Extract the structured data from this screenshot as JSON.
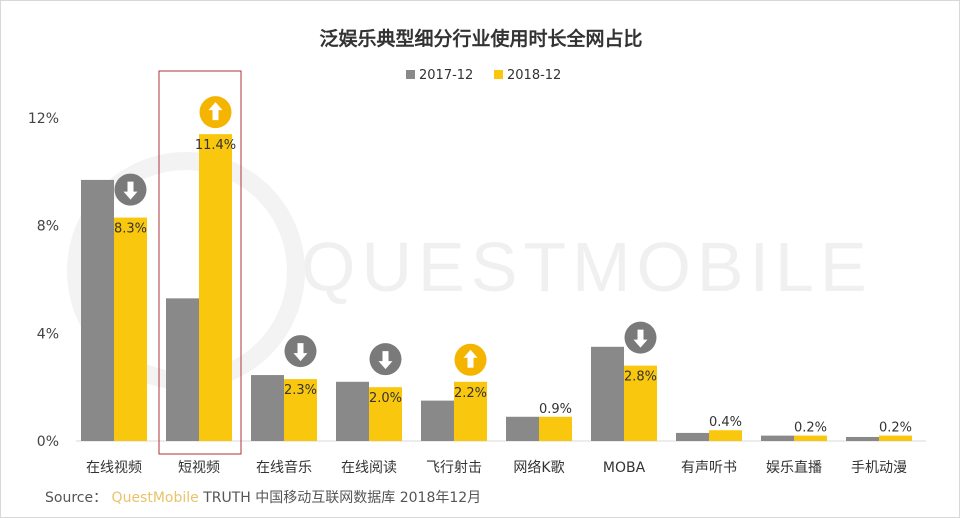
{
  "chart_data": {
    "type": "bar",
    "title": "泛娱乐典型细分行业使用时长全网占比",
    "categories": [
      "在线视频",
      "短视频",
      "在线音乐",
      "在线阅读",
      "飞行射击",
      "网络K歌",
      "MOBA",
      "有声听书",
      "娱乐直播",
      "手机动漫"
    ],
    "series": [
      {
        "name": "2017-12",
        "color": "#898989",
        "values": [
          9.7,
          5.3,
          2.45,
          2.2,
          1.5,
          0.9,
          3.5,
          0.3,
          0.2,
          0.15
        ]
      },
      {
        "name": "2018-12",
        "color": "#f9c80e",
        "values": [
          8.3,
          11.4,
          2.3,
          2.0,
          2.2,
          0.9,
          2.8,
          0.4,
          0.2,
          0.2
        ],
        "labels": [
          "8.3%",
          "11.4%",
          "2.3%",
          "2.0%",
          "2.2%",
          "0.9%",
          "2.8%",
          "0.4%",
          "0.2%",
          "0.2%"
        ]
      }
    ],
    "trend_icons": [
      "down-arrow-icon",
      "up-arrow-icon",
      "down-arrow-icon",
      "down-arrow-icon",
      "up-arrow-icon",
      null,
      "down-arrow-icon",
      null,
      null,
      null
    ],
    "highlighted_category": "短视频",
    "ylim": [
      0,
      12
    ],
    "yticks": [
      "0%",
      "4%",
      "8%",
      "12%"
    ],
    "ytick_values": [
      0,
      4,
      8,
      12
    ],
    "grid": false,
    "legend": "top-center",
    "watermark": "QUESTMOBILE"
  },
  "source": {
    "prefix": "Source：",
    "brand": "QuestMobile",
    "text": "TRUTH 中国移动互联网数据库 2018年12月"
  }
}
